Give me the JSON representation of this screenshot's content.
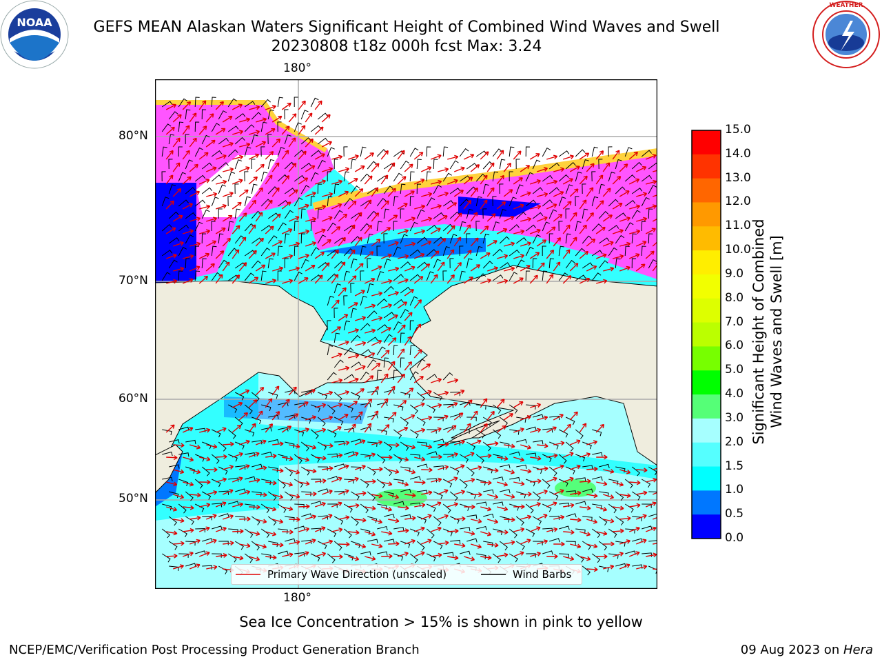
{
  "header": {
    "title_line1": "GEFS MEAN Alaskan Waters Significant Height of Combined Wind Waves and Swell",
    "title_line2": "20230808 t18z 000h fcst   Max: 3.24"
  },
  "logos": {
    "left": {
      "name": "noaa-logo",
      "text": "NOAA"
    },
    "right": {
      "name": "national-weather-service-logo",
      "text": "NATIONAL WEATHER SERVICE"
    }
  },
  "map": {
    "lon_label_top": "180°",
    "lon_label_bottom": "180°",
    "lat_labels": [
      "80°N",
      "70°N",
      "60°N",
      "50°N"
    ],
    "colors": {
      "land": "#efedde",
      "ice_pink": "#ff55ff",
      "ice_yellow": "#ffd23c",
      "wave_cyan": "#33ffff",
      "wave_light": "#a6ffff",
      "wave_blue": "#0000ff",
      "wave_green": "#55ff7a",
      "wave_arrow": "#e00000",
      "wind_barb": "#000000"
    }
  },
  "legend": {
    "wave_label": "Primary Wave Direction (unscaled)",
    "wind_label": "Wind Barbs"
  },
  "colorbar": {
    "label_line1": "Significant Height of Combined",
    "label_line2": "Wind Waves and Swell [m]",
    "ticks": [
      "15.0",
      "14.0",
      "13.0",
      "12.0",
      "11.0",
      "10.0",
      "9.0",
      "8.0",
      "7.0",
      "6.0",
      "5.0",
      "4.0",
      "3.0",
      "2.0",
      "1.5",
      "1.0",
      "0.5",
      "0.0"
    ],
    "colors": [
      "#ff0000",
      "#ff3300",
      "#ff6600",
      "#ff9900",
      "#ffbb00",
      "#ffee00",
      "#f2ff00",
      "#ddff00",
      "#bbff00",
      "#77ff00",
      "#00ff00",
      "#55ff77",
      "#a6ffff",
      "#55ffff",
      "#00ffff",
      "#0077ff",
      "#0000ff"
    ]
  },
  "footer": {
    "note": "Sea Ice Concentration > 15% is shown in pink to yellow",
    "credit_left": "NCEP/EMC/Verification Post Processing Product Generation Branch",
    "credit_right_date": "09 Aug 2023 on ",
    "credit_right_machine": "Hera"
  }
}
